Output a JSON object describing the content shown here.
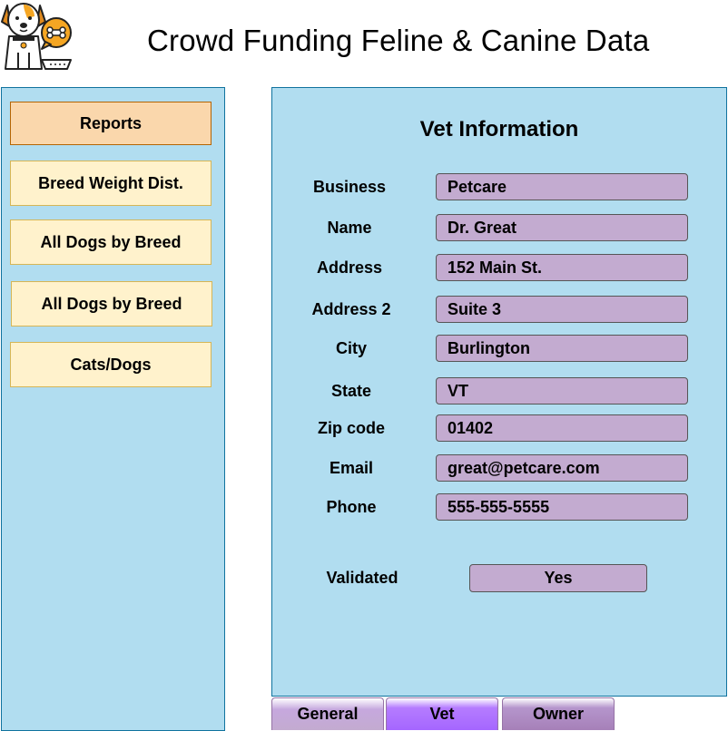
{
  "header": {
    "title": "Crowd Funding Feline & Canine Data",
    "logo_icon": "dog-with-bone-bubble-icon"
  },
  "sidebar": {
    "items": [
      {
        "label": "Reports",
        "active": true
      },
      {
        "label": "Breed Weight Dist."
      },
      {
        "label": "All Dogs by Breed"
      },
      {
        "label": "All Dogs by Breed"
      },
      {
        "label": "Cats/Dogs"
      }
    ]
  },
  "panel": {
    "title": "Vet Information",
    "fields": [
      {
        "label": "Business",
        "value": "Petcare"
      },
      {
        "label": "Name",
        "value": "Dr. Great"
      },
      {
        "label": "Address",
        "value": "152 Main St."
      },
      {
        "label": "Address 2",
        "value": "Suite 3"
      },
      {
        "label": "City",
        "value": "Burlington"
      },
      {
        "label": "State",
        "value": "VT"
      },
      {
        "label": "Zip code",
        "value": "01402"
      },
      {
        "label": "Email",
        "value": "great@petcare.com"
      },
      {
        "label": "Phone",
        "value": "555-555-5555"
      }
    ],
    "validated": {
      "label": "Validated",
      "value": "Yes"
    }
  },
  "tabs": [
    {
      "label": "General"
    },
    {
      "label": "Vet",
      "active": true
    },
    {
      "label": "Owner"
    }
  ],
  "colors": {
    "panel_bg": "#b1ddf0",
    "panel_border": "#10739e",
    "button_bg": "#fff2cc",
    "active_button_bg": "#fad7ac",
    "field_bg": "#c3abd0",
    "active_tab": "#a566ff",
    "logo_accent": "#f5a623"
  }
}
